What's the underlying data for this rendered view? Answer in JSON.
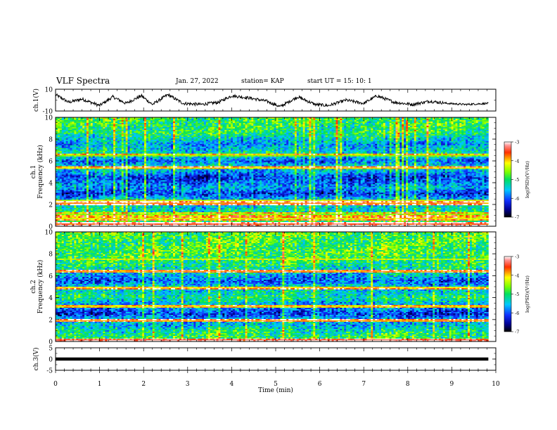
{
  "header": {
    "title": "VLF Spectra",
    "date": "Jan. 27, 2022",
    "station": "station= KAP",
    "start": "start UT =  15: 10: 1"
  },
  "chart_data": [
    {
      "type": "line",
      "name": "ch1-waveform",
      "ylabel": "ch.1(V)",
      "ylim": [
        -10,
        10
      ],
      "yticks": [
        "10",
        "-10"
      ],
      "xlim": [
        0,
        10
      ],
      "x_end": 9.83,
      "color": "#000000",
      "shape_x": [
        0,
        0.3,
        0.6,
        1.0,
        1.3,
        1.6,
        1.95,
        2.2,
        2.55,
        2.9,
        3.3,
        3.7,
        4.0,
        4.4,
        4.8,
        5.1,
        5.5,
        5.9,
        6.2,
        6.6,
        7.0,
        7.3,
        7.7,
        8.1,
        8.5,
        8.9,
        9.3,
        9.83
      ],
      "shape_y": [
        5,
        -2,
        1,
        -5,
        3,
        -3,
        4,
        -4,
        5,
        -3,
        -4,
        -2,
        4,
        2,
        -1,
        -6,
        3,
        -4,
        -5,
        0,
        -3,
        4,
        -2,
        -4,
        -1,
        -3,
        -4,
        -3
      ],
      "noise": 1.4
    },
    {
      "type": "heatmap",
      "name": "ch1-spectrogram",
      "ylabel": "ch.1 Frequency (kHz)",
      "yticks": [
        "0",
        "2",
        "4",
        "6",
        "8",
        "10"
      ],
      "ylim": [
        0,
        10
      ],
      "xlim": [
        0,
        10
      ],
      "x_end": 9.83,
      "colorbar": {
        "label": "log(PSD)(V²/Hz)",
        "min": -7,
        "max": -3,
        "ticks": [
          "-3",
          "-4",
          "-5",
          "-6",
          "-7"
        ]
      },
      "bands": [
        {
          "f": 0.2,
          "w": 0.15,
          "v": -3.5
        },
        {
          "f": 0.7,
          "w": 0.2,
          "v": -4.2
        },
        {
          "f": 1.1,
          "w": 0.15,
          "v": -4.6
        },
        {
          "f": 2.1,
          "w": 0.15,
          "v": -3.8
        },
        {
          "f": 2.35,
          "w": 0.1,
          "v": -4.3
        },
        {
          "f": 5.35,
          "w": 0.12,
          "v": -4.2
        },
        {
          "f": 6.5,
          "w": 0.12,
          "v": -4.6
        }
      ],
      "profile": [
        {
          "f": 0.0,
          "v": -4.6
        },
        {
          "f": 0.5,
          "v": -4.9
        },
        {
          "f": 1.0,
          "v": -5.0
        },
        {
          "f": 1.5,
          "v": -5.3
        },
        {
          "f": 2.5,
          "v": -5.5
        },
        {
          "f": 3.0,
          "v": -6.2
        },
        {
          "f": 3.5,
          "v": -5.6
        },
        {
          "f": 4.0,
          "v": -5.9
        },
        {
          "f": 4.5,
          "v": -6.2
        },
        {
          "f": 5.0,
          "v": -5.6
        },
        {
          "f": 5.5,
          "v": -5.3
        },
        {
          "f": 6.0,
          "v": -6.0
        },
        {
          "f": 6.5,
          "v": -5.2
        },
        {
          "f": 7.0,
          "v": -5.4
        },
        {
          "f": 7.5,
          "v": -5.7
        },
        {
          "f": 8.0,
          "v": -5.4
        },
        {
          "f": 8.5,
          "v": -5.0
        },
        {
          "f": 9.0,
          "v": -5.0
        },
        {
          "f": 10.0,
          "v": -4.9
        }
      ]
    },
    {
      "type": "heatmap",
      "name": "ch2-spectrogram",
      "ylabel": "ch.2 Frequency (kHz)",
      "yticks": [
        "0",
        "2",
        "4",
        "6",
        "8",
        "10"
      ],
      "ylim": [
        0,
        10
      ],
      "xlim": [
        0,
        10
      ],
      "x_end": 9.83,
      "colorbar": {
        "label": "log(PSD)(V²/Hz)",
        "min": -7,
        "max": -3,
        "ticks": [
          "-3",
          "-4",
          "-5",
          "-6",
          "-7"
        ]
      },
      "bands": [
        {
          "f": 0.15,
          "w": 0.12,
          "v": -3.5
        },
        {
          "f": 1.9,
          "w": 0.12,
          "v": -3.9
        },
        {
          "f": 3.2,
          "w": 0.1,
          "v": -4.3
        },
        {
          "f": 4.9,
          "w": 0.1,
          "v": -4.2
        },
        {
          "f": 6.4,
          "w": 0.12,
          "v": -3.9
        },
        {
          "f": 7.5,
          "w": 0.12,
          "v": -4.3
        }
      ],
      "profile": [
        {
          "f": 0.0,
          "v": -4.8
        },
        {
          "f": 1.0,
          "v": -5.2
        },
        {
          "f": 1.5,
          "v": -5.6
        },
        {
          "f": 2.0,
          "v": -5.5
        },
        {
          "f": 2.5,
          "v": -6.2
        },
        {
          "f": 3.0,
          "v": -5.8
        },
        {
          "f": 3.5,
          "v": -5.6
        },
        {
          "f": 4.0,
          "v": -5.1
        },
        {
          "f": 4.5,
          "v": -5.4
        },
        {
          "f": 5.0,
          "v": -5.4
        },
        {
          "f": 5.5,
          "v": -6.0
        },
        {
          "f": 6.0,
          "v": -5.6
        },
        {
          "f": 7.0,
          "v": -5.1
        },
        {
          "f": 8.0,
          "v": -4.8
        },
        {
          "f": 9.0,
          "v": -4.9
        },
        {
          "f": 10.0,
          "v": -4.8
        }
      ]
    },
    {
      "type": "line",
      "name": "ch3-waveform",
      "ylabel": "ch.3(V)",
      "ylim": [
        -5,
        5
      ],
      "yticks": [
        "5",
        "0",
        "-5"
      ],
      "xlim": [
        0,
        10
      ],
      "x_end": 9.83,
      "level": 0,
      "thickness": 1.4,
      "color": "#000000"
    }
  ],
  "xaxis": {
    "label": "Time (min)",
    "ticks": [
      "0",
      "1",
      "2",
      "3",
      "4",
      "5",
      "6",
      "7",
      "8",
      "9",
      "10"
    ]
  }
}
